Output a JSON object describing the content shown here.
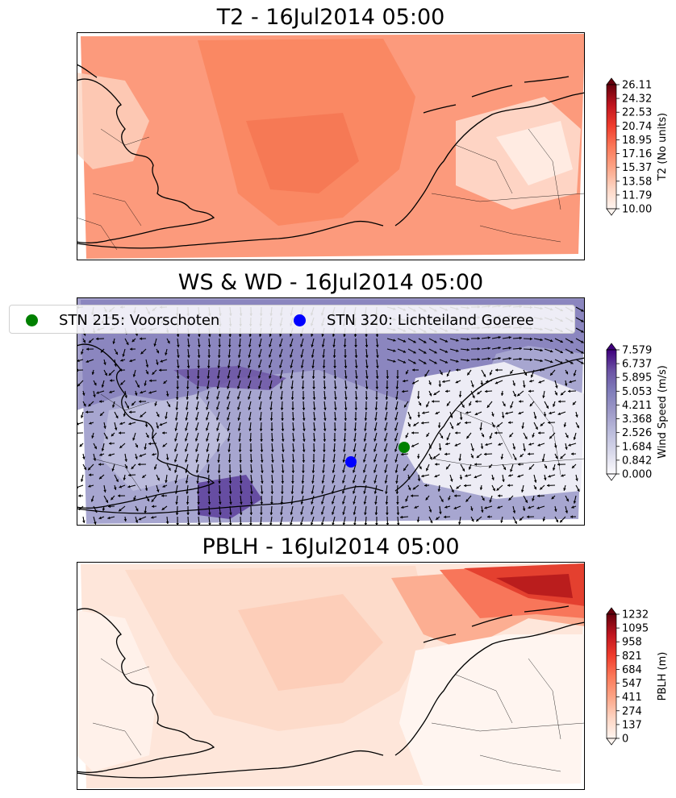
{
  "panels": {
    "t2": {
      "title": "T2 - 16Jul2014 05:00",
      "colorbar": {
        "label": "T2 (No units)",
        "ticks": [
          "10.00",
          "11.79",
          "13.58",
          "15.37",
          "17.16",
          "18.95",
          "20.74",
          "22.53",
          "24.32",
          "26.11"
        ],
        "colormap": [
          "#fff5f0",
          "#fdd4c2",
          "#fca486",
          "#fb7858",
          "#ef3c2c",
          "#c0151f",
          "#67000d"
        ]
      }
    },
    "wind": {
      "title": "WS & WD - 16Jul2014 05:00",
      "colorbar": {
        "label": "Wind Speed (m/s)",
        "ticks": [
          "0.000",
          "0.842",
          "1.684",
          "2.526",
          "3.368",
          "4.211",
          "5.053",
          "5.895",
          "6.737",
          "7.579"
        ],
        "colormap": [
          "#fcfbfd",
          "#dadaeb",
          "#bcbddc",
          "#9e9ac8",
          "#807dba",
          "#6a51a3",
          "#3f007d"
        ]
      },
      "legend": {
        "items": [
          {
            "label": "STN 215: Voorschoten",
            "color": "#008000"
          },
          {
            "label": "STN 320: Lichteiland Goeree",
            "color": "#0000ff"
          }
        ]
      }
    },
    "pblh": {
      "title": "PBLH - 16Jul2014 05:00",
      "colorbar": {
        "label": "PBLH (m)",
        "ticks": [
          "0",
          "137",
          "274",
          "411",
          "547",
          "684",
          "821",
          "958",
          "1095",
          "1232"
        ],
        "colormap": [
          "#fff5f0",
          "#fdd4c2",
          "#fca486",
          "#fb7858",
          "#ef3c2c",
          "#c0151f",
          "#67000d"
        ]
      }
    }
  }
}
